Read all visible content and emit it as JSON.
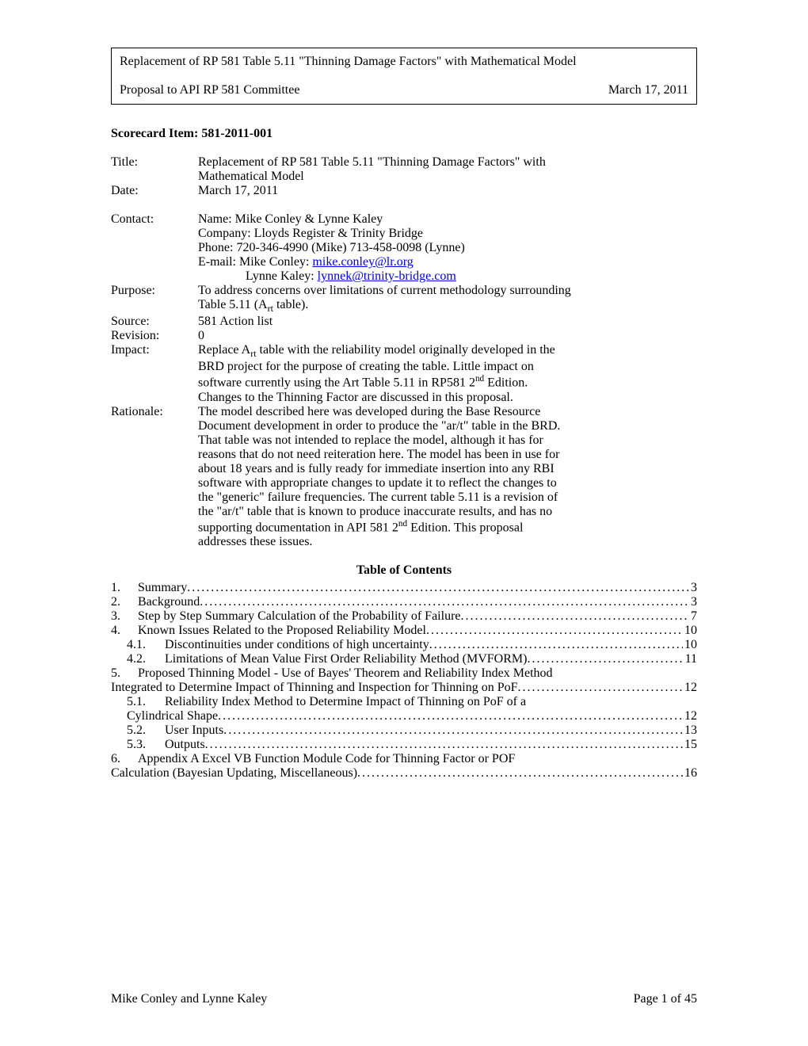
{
  "header": {
    "title": "Replacement of RP 581 Table 5.11 \"Thinning Damage Factors\" with Mathematical Model",
    "subtitle": "Proposal to API RP 581 Committee",
    "date": "March 17, 2011"
  },
  "scorecard": "Scorecard Item: 581-2011-001",
  "meta": {
    "title_label": "Title:",
    "title_value_l1": "Replacement of RP 581 Table 5.11 \"Thinning Damage Factors\" with",
    "title_value_l2": "Mathematical Model",
    "date_label": "Date:",
    "date_value": "March 17, 2011",
    "contact_label": "Contact:",
    "contact_name": "Name: Mike Conley & Lynne Kaley",
    "contact_company": "Company:  Lloyds Register & Trinity Bridge",
    "contact_phone": "Phone:  720-346-4990 (Mike)  713-458-0098 (Lynne)",
    "contact_email_prefix": "E-mail: Mike Conley: ",
    "contact_email1": "mike.conley@lr.org",
    "contact_email2_prefix": "Lynne Kaley: ",
    "contact_email2": "lynnek@trinity-bridge.com",
    "purpose_label": "Purpose:",
    "purpose_l1": "To address concerns over limitations of current methodology surrounding",
    "purpose_l2a": "Table 5.11 (A",
    "purpose_l2b": "rt",
    "purpose_l2c": "  table).",
    "source_label": "Source:",
    "source_value": "581 Action list",
    "revision_label": "Revision:",
    "revision_value": "0",
    "impact_label": "Impact:",
    "impact_l1a": "Replace A",
    "impact_l1b": "rt",
    "impact_l1c": " table with the reliability model originally developed in the",
    "impact_l2": "BRD project for the purpose of creating the table.  Little impact on",
    "impact_l3a": "software currently using the Art Table 5.11 in RP581 2",
    "impact_l3b": "nd",
    "impact_l3c": " Edition.",
    "impact_l4": "Changes to the Thinning Factor are discussed in this proposal.",
    "rationale_label": "Rationale:",
    "rationale_l1": "The model described here was developed during the Base Resource",
    "rationale_l2": "Document development in order to produce the \"ar/t\" table in the BRD.",
    "rationale_l3": "That table was not intended to replace the model, although it has for",
    "rationale_l4": "reasons that do not need reiteration here.  The model has been in use for",
    "rationale_l5": "about 18 years and is fully ready for immediate insertion into any RBI",
    "rationale_l6": "software with appropriate changes to update it to reflect the changes to",
    "rationale_l7": "the \"generic\" failure frequencies.  The current table 5.11 is a revision of",
    "rationale_l8": "the \"ar/t\" table that is known to produce inaccurate results, and has no",
    "rationale_l9a": "supporting documentation in API 581 2",
    "rationale_l9b": "nd",
    "rationale_l9c": " Edition.  This proposal",
    "rationale_l10": "addresses these issues."
  },
  "toc": {
    "heading": "Table of Contents",
    "items": [
      {
        "num": "1.",
        "text": "Summary",
        "page": "3",
        "indent": 0
      },
      {
        "num": "2.",
        "text": "Background",
        "page": "3",
        "indent": 0
      },
      {
        "num": "3.",
        "text": "Step by Step Summary Calculation of the Probability of Failure",
        "page": "7",
        "indent": 0
      },
      {
        "num": "4.",
        "text": "Known Issues Related to the Proposed Reliability Model",
        "page": "10",
        "indent": 0
      },
      {
        "num": "4.1.",
        "text": "Discontinuities under conditions of high uncertainty",
        "page": "10",
        "indent": 1
      },
      {
        "num": "4.2.",
        "text": "Limitations of Mean Value First Order Reliability Method (MVFORM)",
        "page": "11",
        "indent": 1
      }
    ],
    "item5": {
      "num": "5.",
      "line1": "Proposed Thinning Model - Use of Bayes' Theorem and Reliability Index Method",
      "line2": "Integrated to Determine Impact of Thinning and Inspection for Thinning on PoF",
      "page": "12"
    },
    "item51": {
      "num": "5.1.",
      "line1": "Reliability Index Method to Determine Impact of Thinning on PoF of a",
      "line2": "Cylindrical Shape",
      "page": "12"
    },
    "items2": [
      {
        "num": "5.2.",
        "text": "User Inputs",
        "page": "13",
        "indent": 1
      },
      {
        "num": "5.3.",
        "text": "Outputs",
        "page": "15",
        "indent": 1
      }
    ],
    "item6": {
      "num": "6.",
      "line1": "Appendix A Excel VB Function Module Code for Thinning Factor or POF",
      "line2": "Calculation (Bayesian Updating, Miscellaneous)",
      "page": "16"
    }
  },
  "footer": {
    "left": "Mike Conley and Lynne Kaley",
    "right": "Page 1 of 45"
  }
}
